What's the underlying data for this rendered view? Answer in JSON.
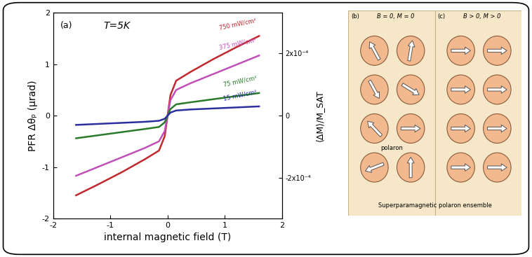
{
  "chart_data": {
    "type": "line",
    "annotations": [
      "(a)",
      "T=5K"
    ],
    "x_label": "internal magnetic field (T)",
    "y_label": "PFR Δθₚ (μrad)",
    "y2_label": "⟨ΔM⟩/M_SAT",
    "x": [
      -1.6,
      -1.2,
      -0.8,
      -0.4,
      -0.15,
      -0.05,
      0,
      0.05,
      0.15,
      0.4,
      0.8,
      1.2,
      1.6
    ],
    "series": [
      {
        "name": "750 mW/cm²",
        "color": "#c0282d",
        "line_style": "solid",
        "values": [
          -1.55,
          -1.33,
          -1.1,
          -0.85,
          -0.68,
          -0.4,
          0,
          0.4,
          0.68,
          0.85,
          1.1,
          1.33,
          1.55
        ]
      },
      {
        "name": "375 mW/cm²",
        "color": "#c04fb8",
        "line_style": "solid",
        "values": [
          -1.17,
          -0.99,
          -0.81,
          -0.63,
          -0.5,
          -0.3,
          0,
          0.3,
          0.5,
          0.63,
          0.81,
          0.99,
          1.17
        ]
      },
      {
        "name": "75 mW/cm²",
        "color": "#2a7a2a",
        "line_style": "solid",
        "values": [
          -0.44,
          -0.38,
          -0.32,
          -0.26,
          -0.22,
          -0.13,
          0,
          0.13,
          0.22,
          0.26,
          0.32,
          0.38,
          0.44
        ]
      },
      {
        "name": "15 mW/cm²",
        "color": "#2b2fa0",
        "line_style": "solid",
        "values": [
          -0.18,
          -0.16,
          -0.14,
          -0.12,
          -0.1,
          -0.06,
          0,
          0.06,
          0.1,
          0.12,
          0.14,
          0.16,
          0.18
        ]
      }
    ],
    "xlim": [
      -2,
      2
    ],
    "xticks": [
      -2,
      -1,
      0,
      1,
      2
    ],
    "ylim": [
      -2,
      2
    ],
    "yticks": [
      -2,
      -1,
      0,
      1,
      2
    ],
    "y2lim": [
      -0.00033,
      0.00033
    ],
    "y2ticks": [
      {
        "value": -0.0002,
        "label": "-2x10⁻⁴"
      },
      0,
      {
        "value": 0.0002,
        "label": "2x10⁻⁴"
      }
    ],
    "legend": false,
    "grid": false
  },
  "diagram": {
    "panels": [
      {
        "label": "(b)",
        "title": "B = 0, M = 0"
      },
      {
        "label": "(c)",
        "title": "B > 0, M > 0"
      }
    ],
    "annotation": "polaron",
    "caption": "Superparamagnetic polaron ensemble"
  }
}
